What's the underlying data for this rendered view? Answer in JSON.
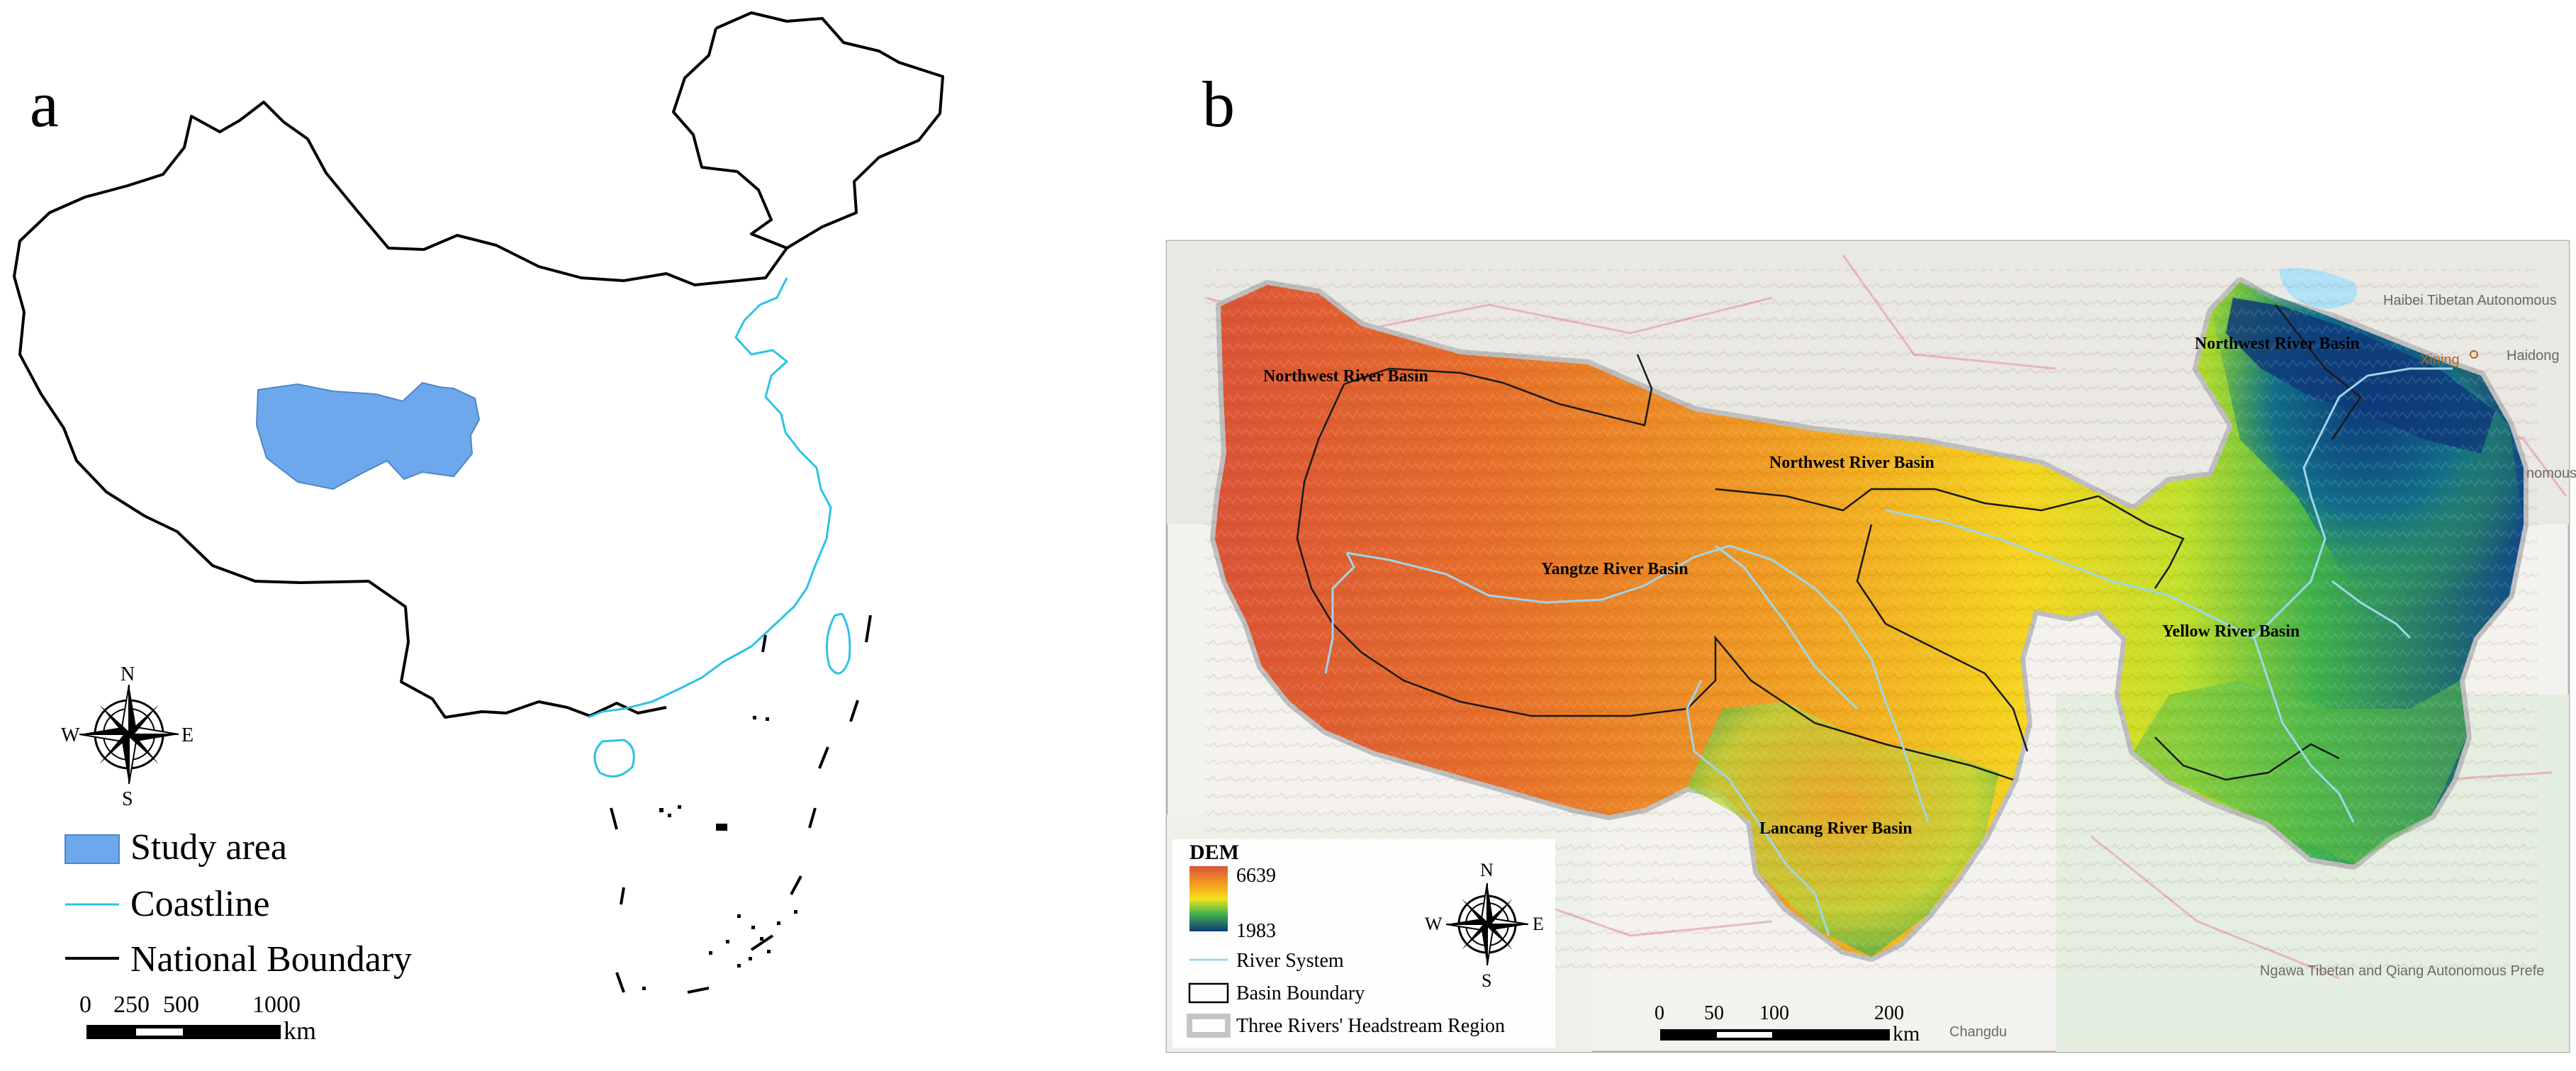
{
  "panel_a": {
    "label": "a",
    "compass": {
      "n": "N",
      "s": "S",
      "e": "E",
      "w": "W"
    },
    "legend": {
      "study_area": "Study area",
      "coastline": "Coastline",
      "national_boundary": "National Boundary"
    },
    "scale": {
      "t0": "0",
      "t1": "250",
      "t2": "500",
      "t3": "1000",
      "unit": "km"
    },
    "colors": {
      "study_area": "#6ea8ec",
      "coastline": "#2cc3e6",
      "boundary": "#000000"
    }
  },
  "panel_b": {
    "label": "b",
    "basins": {
      "northwest_1": "Northwest River Basin",
      "northwest_2": "Northwest River Basin",
      "northwest_3": "Northwest River Basin",
      "yangtze": "Yangtze River Basin",
      "yellow": "Yellow River Basin",
      "lancang": "Lancang River Basin"
    },
    "places": {
      "haibei": "Haibei Tibetan Autonomous",
      "xining": "Xining",
      "haidong": "Haidong",
      "nomous": "nomous",
      "ngawa": "Ngawa Tibetan and Qiang Autonomous Prefe",
      "changdu": "Changdu"
    },
    "legend": {
      "dem_title": "DEM",
      "dem_max": "6639",
      "dem_min": "1983",
      "river_system": "River System",
      "basin_boundary": "Basin Boundary",
      "region": "Three Rivers' Headstream Region"
    },
    "compass": {
      "n": "N",
      "s": "S",
      "e": "E",
      "w": "W"
    },
    "scale": {
      "t0": "0",
      "t1": "50",
      "t2": "100",
      "t3": "200",
      "unit": "km"
    },
    "colors": {
      "dem_high": "#d9543a",
      "dem_mid": "#f5d21c",
      "dem_green": "#49b84a",
      "dem_low": "#0d3a7a",
      "river": "#9fd6ec"
    }
  }
}
